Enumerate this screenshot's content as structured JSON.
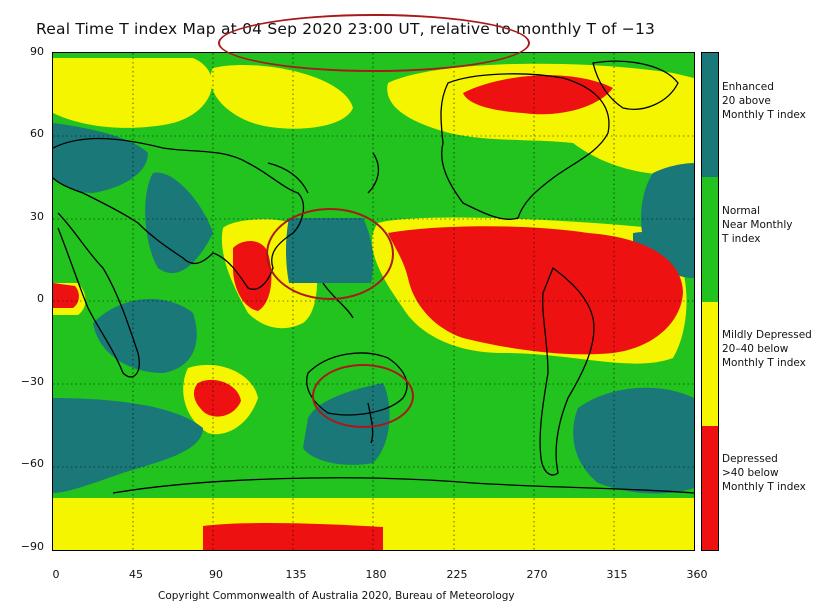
{
  "title": "Real Time T index Map at 04 Sep 2020 23:00 UT, relative to monthly T of −13",
  "y_ticks": [
    "90",
    "60",
    "30",
    "0",
    "−30",
    "−60",
    "−90"
  ],
  "x_ticks": [
    "0",
    "45",
    "90",
    "135",
    "180",
    "225",
    "270",
    "315",
    "360"
  ],
  "legend": [
    {
      "label": "Enhanced\n20 above\nMonthly T index",
      "color": "#1a7878"
    },
    {
      "label": "Normal\nNear Monthly\nT index",
      "color": "#22c21f"
    },
    {
      "label": "Mildly Depressed\n20–40 below\nMonthly T index",
      "color": "#f5f500"
    },
    {
      "label": "Depressed\n>40 below\nMonthly T index",
      "color": "#ee1111"
    }
  ],
  "copyright": "Copyright Commonwealth of Australia 2020, Bureau of Meteorology",
  "colors": {
    "enhanced": "#1a7878",
    "normal": "#22c21f",
    "mild": "#f5f500",
    "depressed": "#ee1111",
    "callout": "#a81a1a"
  }
}
